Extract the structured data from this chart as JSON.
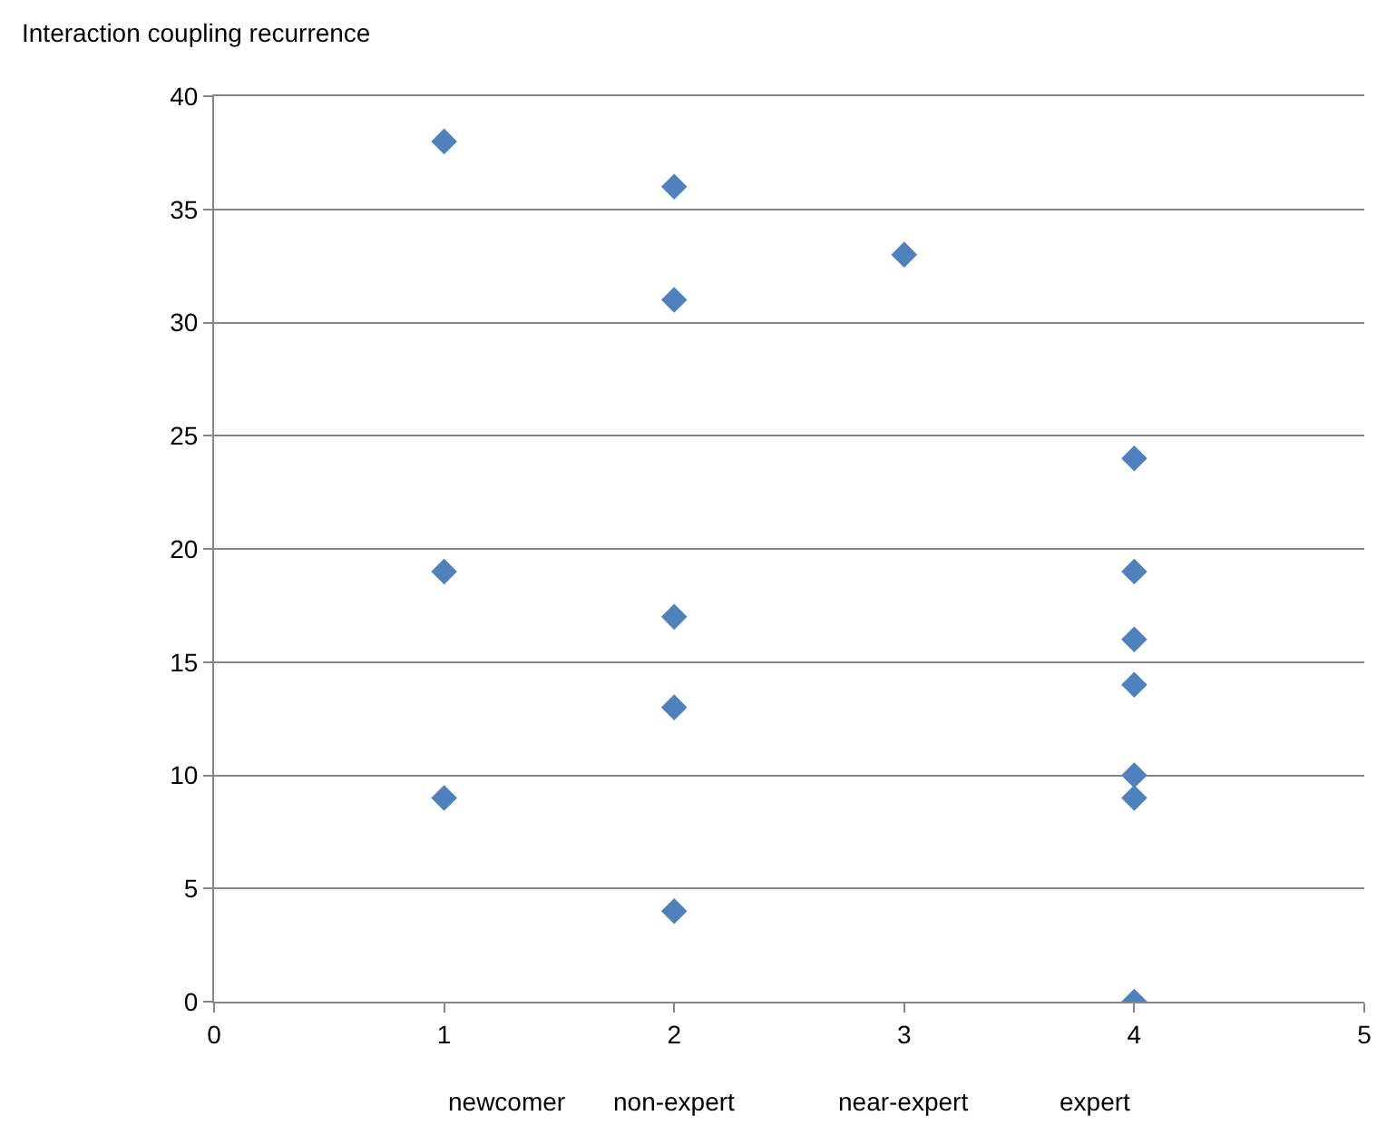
{
  "chart_data": {
    "type": "scatter",
    "ylabel": "Interaction coupling recurrence",
    "x": [
      1,
      1,
      1,
      2,
      2,
      2,
      2,
      2,
      3,
      4,
      4,
      4,
      4,
      4,
      4,
      4
    ],
    "values": [
      38,
      19,
      9,
      36,
      31,
      17,
      13,
      4,
      33,
      24,
      19,
      16,
      14,
      10,
      9,
      0
    ],
    "color": "#4f81bd",
    "marker": "diamond",
    "xlim": [
      0,
      5
    ],
    "xticks": [
      0,
      1,
      2,
      3,
      4,
      5
    ],
    "ylim": [
      0,
      40
    ],
    "yticks": [
      0,
      5,
      10,
      15,
      20,
      25,
      30,
      35,
      40
    ],
    "grid": "y",
    "annotations": [
      "newcomer",
      "non-expert",
      "near-expert",
      "expert"
    ]
  }
}
